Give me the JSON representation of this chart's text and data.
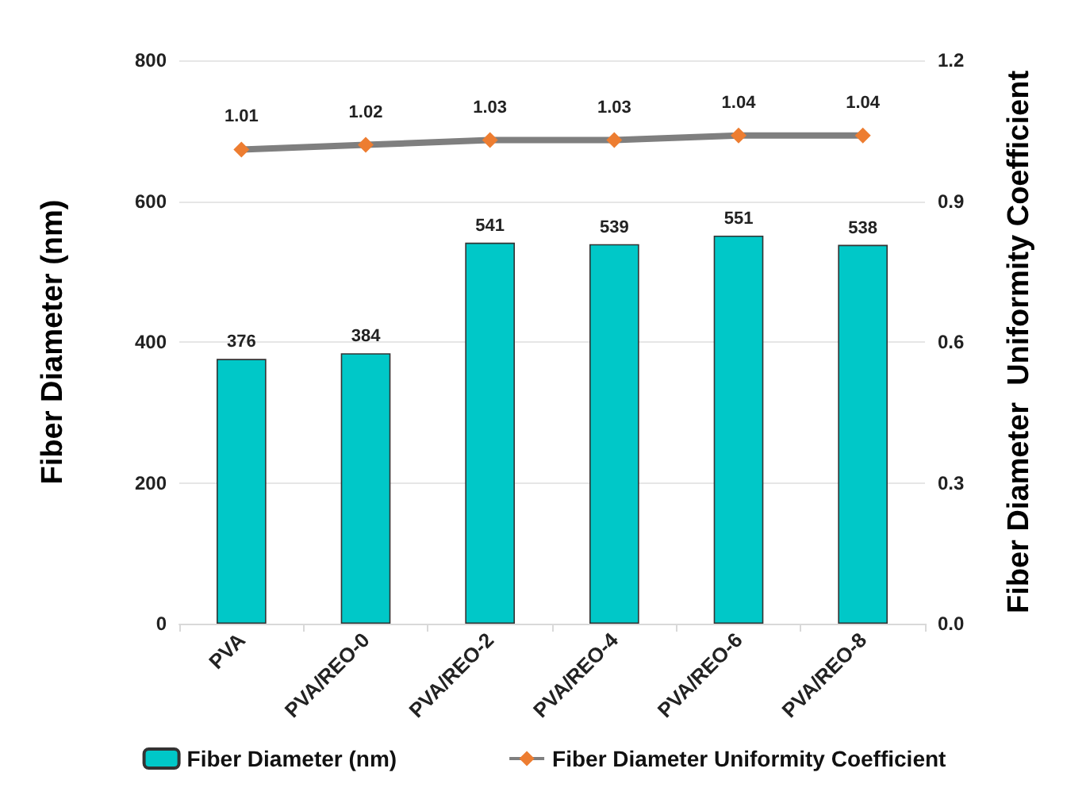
{
  "chart_data": {
    "type": "bar",
    "ylabel": "Fiber Diameter (nm)",
    "y2label": "Fiber Diameter  Uniformity Coefficient",
    "categories": [
      "PVA",
      "PVA/REO-0",
      "PVA/REO-2",
      "PVA/REO-4",
      "PVA/REO-6",
      "PVA/REO-8"
    ],
    "series": [
      {
        "name": "Fiber Diameter (nm)",
        "color": "#00c8c8",
        "values": [
          376,
          384,
          541,
          539,
          551,
          538
        ]
      },
      {
        "name": "Fiber Diameter Uniformity Coefficient",
        "type": "line",
        "axis": "y2",
        "color": "#7f7f7f",
        "colors": [
          "#ed7d31",
          "#ed7d31",
          "#ed7d31",
          "#ed7d31",
          "#ed7d31",
          "#ed7d31"
        ],
        "values": [
          1.01,
          1.02,
          1.03,
          1.03,
          1.04,
          1.04
        ]
      }
    ],
    "ylim": [
      0,
      800
    ],
    "yticks": [
      0,
      200,
      400,
      600,
      800
    ],
    "y2lim": [
      0,
      1.2
    ],
    "y2ticks": [
      {
        "value": 0,
        "label": "0.0"
      },
      0.3,
      0.6,
      0.9,
      1.2
    ],
    "data_labels": true,
    "grid": "y",
    "legend": "bottom",
    "marker": "diamond"
  }
}
